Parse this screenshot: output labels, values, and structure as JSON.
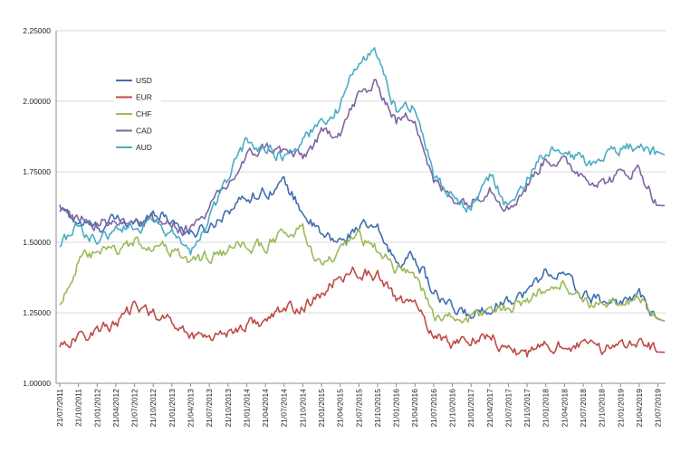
{
  "chart_data": {
    "type": "line",
    "title": "",
    "xlabel": "",
    "ylabel": "",
    "ylim": [
      1.0,
      2.25
    ],
    "y_ticks": [
      "1.00000",
      "1.25000",
      "1.50000",
      "1.75000",
      "2.00000",
      "2.25000"
    ],
    "y_tick_values": [
      1.0,
      1.25,
      1.5,
      1.75,
      2.0,
      2.25
    ],
    "x_ticks": [
      "21/07/2011",
      "21/10/2011",
      "21/01/2012",
      "21/04/2012",
      "21/07/2012",
      "21/10/2012",
      "21/01/2013",
      "21/04/2013",
      "21/07/2013",
      "21/10/2013",
      "21/01/2014",
      "21/04/2014",
      "21/07/2014",
      "21/10/2014",
      "21/01/2015",
      "21/04/2015",
      "21/07/2015",
      "21/10/2015",
      "21/01/2016",
      "21/04/2016",
      "21/07/2016",
      "21/10/2016",
      "21/01/2017",
      "21/04/2017",
      "21/07/2017",
      "21/10/2017",
      "21/01/2018",
      "21/04/2018",
      "21/07/2018",
      "21/10/2018",
      "21/01/2019",
      "21/04/2019",
      "21/07/2019"
    ],
    "grid": true,
    "legend_position": "top-left",
    "series": [
      {
        "name": "USD",
        "color": "#3f6fae",
        "x": [
          "21/07/2011",
          "21/10/2011",
          "21/01/2012",
          "21/04/2012",
          "21/07/2012",
          "21/10/2012",
          "21/01/2013",
          "21/04/2013",
          "21/07/2013",
          "21/10/2013",
          "21/01/2014",
          "21/04/2014",
          "21/07/2014",
          "21/10/2014",
          "21/01/2015",
          "21/04/2015",
          "21/07/2015",
          "21/10/2015",
          "21/01/2016",
          "21/04/2016",
          "21/07/2016",
          "21/10/2016",
          "21/01/2017",
          "21/04/2017",
          "21/07/2017",
          "21/10/2017",
          "21/01/2018",
          "21/04/2018",
          "21/07/2018",
          "21/10/2018",
          "21/01/2019",
          "21/04/2019",
          "21/07/2019"
        ],
        "values": [
          1.62,
          1.57,
          1.55,
          1.58,
          1.56,
          1.61,
          1.58,
          1.53,
          1.55,
          1.62,
          1.66,
          1.68,
          1.71,
          1.61,
          1.52,
          1.5,
          1.56,
          1.54,
          1.43,
          1.45,
          1.32,
          1.26,
          1.24,
          1.27,
          1.3,
          1.32,
          1.4,
          1.38,
          1.31,
          1.29,
          1.29,
          1.31,
          1.22
        ]
      },
      {
        "name": "EUR",
        "color": "#be4b48",
        "x": [
          "21/07/2011",
          "21/10/2011",
          "21/01/2012",
          "21/04/2012",
          "21/07/2012",
          "21/10/2012",
          "21/01/2013",
          "21/04/2013",
          "21/07/2013",
          "21/10/2013",
          "21/01/2014",
          "21/04/2014",
          "21/07/2014",
          "21/10/2014",
          "21/01/2015",
          "21/04/2015",
          "21/07/2015",
          "21/10/2015",
          "21/01/2016",
          "21/04/2016",
          "21/07/2016",
          "21/10/2016",
          "21/01/2017",
          "21/04/2017",
          "21/07/2017",
          "21/10/2017",
          "21/01/2018",
          "21/04/2018",
          "21/07/2018",
          "21/10/2018",
          "21/01/2019",
          "21/04/2019",
          "21/07/2019"
        ],
        "values": [
          1.14,
          1.16,
          1.19,
          1.21,
          1.27,
          1.25,
          1.22,
          1.17,
          1.17,
          1.18,
          1.21,
          1.22,
          1.26,
          1.27,
          1.31,
          1.38,
          1.4,
          1.38,
          1.3,
          1.27,
          1.18,
          1.14,
          1.16,
          1.17,
          1.12,
          1.1,
          1.13,
          1.14,
          1.13,
          1.12,
          1.14,
          1.16,
          1.11
        ]
      },
      {
        "name": "CHF",
        "color": "#9bbb59",
        "x": [
          "21/07/2011",
          "21/10/2011",
          "21/01/2012",
          "21/04/2012",
          "21/07/2012",
          "21/10/2012",
          "21/01/2013",
          "21/04/2013",
          "21/07/2013",
          "21/10/2013",
          "21/01/2014",
          "21/04/2014",
          "21/07/2014",
          "21/10/2014",
          "21/01/2015",
          "21/04/2015",
          "21/07/2015",
          "21/10/2015",
          "21/01/2016",
          "21/04/2016",
          "21/07/2016",
          "21/10/2016",
          "21/01/2017",
          "21/04/2017",
          "21/07/2017",
          "21/10/2017",
          "21/01/2018",
          "21/04/2018",
          "21/07/2018",
          "21/10/2018",
          "21/01/2019",
          "21/04/2019",
          "21/07/2019"
        ],
        "values": [
          1.28,
          1.43,
          1.46,
          1.47,
          1.5,
          1.49,
          1.47,
          1.43,
          1.45,
          1.47,
          1.48,
          1.49,
          1.53,
          1.54,
          1.41,
          1.46,
          1.52,
          1.47,
          1.41,
          1.39,
          1.24,
          1.23,
          1.23,
          1.26,
          1.27,
          1.3,
          1.33,
          1.35,
          1.3,
          1.27,
          1.28,
          1.31,
          1.22
        ]
      },
      {
        "name": "CAD",
        "color": "#8064a2",
        "x": [
          "21/07/2011",
          "21/10/2011",
          "21/01/2012",
          "21/04/2012",
          "21/07/2012",
          "21/10/2012",
          "21/01/2013",
          "21/04/2013",
          "21/07/2013",
          "21/10/2013",
          "21/01/2014",
          "21/04/2014",
          "21/07/2014",
          "21/10/2014",
          "21/01/2015",
          "21/04/2015",
          "21/07/2015",
          "21/10/2015",
          "21/01/2016",
          "21/04/2016",
          "21/07/2016",
          "21/10/2016",
          "21/01/2017",
          "21/04/2017",
          "21/07/2017",
          "21/10/2017",
          "21/01/2018",
          "21/04/2018",
          "21/07/2018",
          "21/10/2018",
          "21/01/2019",
          "21/04/2019",
          "21/07/2019"
        ],
        "values": [
          1.6,
          1.59,
          1.57,
          1.57,
          1.58,
          1.58,
          1.56,
          1.54,
          1.62,
          1.7,
          1.8,
          1.84,
          1.82,
          1.8,
          1.88,
          1.9,
          2.02,
          2.06,
          1.93,
          1.95,
          1.71,
          1.66,
          1.64,
          1.7,
          1.62,
          1.7,
          1.8,
          1.78,
          1.74,
          1.71,
          1.74,
          1.76,
          1.63
        ]
      },
      {
        "name": "AUD",
        "color": "#4bacc6",
        "x": [
          "21/07/2011",
          "21/10/2011",
          "21/01/2012",
          "21/04/2012",
          "21/07/2012",
          "21/10/2012",
          "21/01/2013",
          "21/04/2013",
          "21/07/2013",
          "21/10/2013",
          "21/01/2014",
          "21/04/2014",
          "21/07/2014",
          "21/10/2014",
          "21/01/2015",
          "21/04/2015",
          "21/07/2015",
          "21/10/2015",
          "21/01/2016",
          "21/04/2016",
          "21/07/2016",
          "21/10/2016",
          "21/01/2017",
          "21/04/2017",
          "21/07/2017",
          "21/10/2017",
          "21/01/2018",
          "21/04/2018",
          "21/07/2018",
          "21/10/2018",
          "21/01/2019",
          "21/04/2019",
          "21/07/2019"
        ],
        "values": [
          1.5,
          1.55,
          1.5,
          1.55,
          1.56,
          1.57,
          1.53,
          1.46,
          1.58,
          1.73,
          1.86,
          1.83,
          1.81,
          1.86,
          1.93,
          1.98,
          2.15,
          2.17,
          1.97,
          1.99,
          1.74,
          1.65,
          1.62,
          1.74,
          1.62,
          1.73,
          1.82,
          1.81,
          1.79,
          1.79,
          1.83,
          1.85,
          1.81
        ]
      }
    ]
  }
}
